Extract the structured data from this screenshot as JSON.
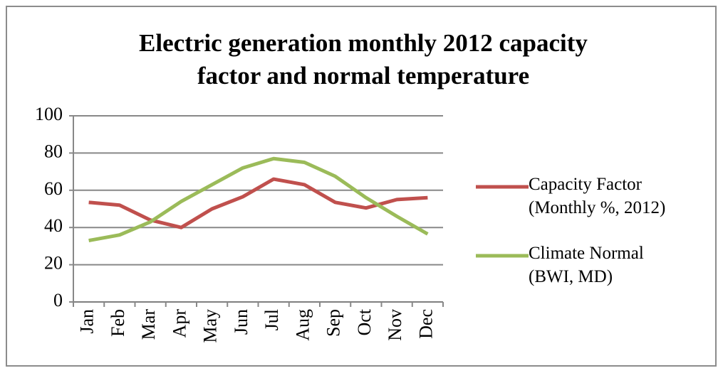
{
  "chart_data": {
    "type": "line",
    "title": "Electric generation monthly 2012 capacity\nfactor and normal temperature",
    "categories": [
      "Jan",
      "Feb",
      "Mar",
      "Apr",
      "May",
      "Jun",
      "Jul",
      "Aug",
      "Sep",
      "Oct",
      "Nov",
      "Dec"
    ],
    "series": [
      {
        "name": "Capacity Factor\n(Monthly %, 2012)",
        "color": "#c0504d",
        "values": [
          53.5,
          52,
          44,
          40,
          50,
          56.5,
          66,
          63,
          53.5,
          50.5,
          55,
          56
        ]
      },
      {
        "name": "Climate Normal\n(BWI, MD)",
        "color": "#9bbb59",
        "values": [
          33,
          36,
          43,
          54,
          63,
          72,
          77,
          75,
          67.5,
          56,
          46,
          36.5
        ]
      }
    ],
    "ylim": [
      0,
      100
    ],
    "yticks": [
      0,
      20,
      40,
      60,
      80,
      100
    ],
    "grid": true,
    "legend": "right"
  }
}
